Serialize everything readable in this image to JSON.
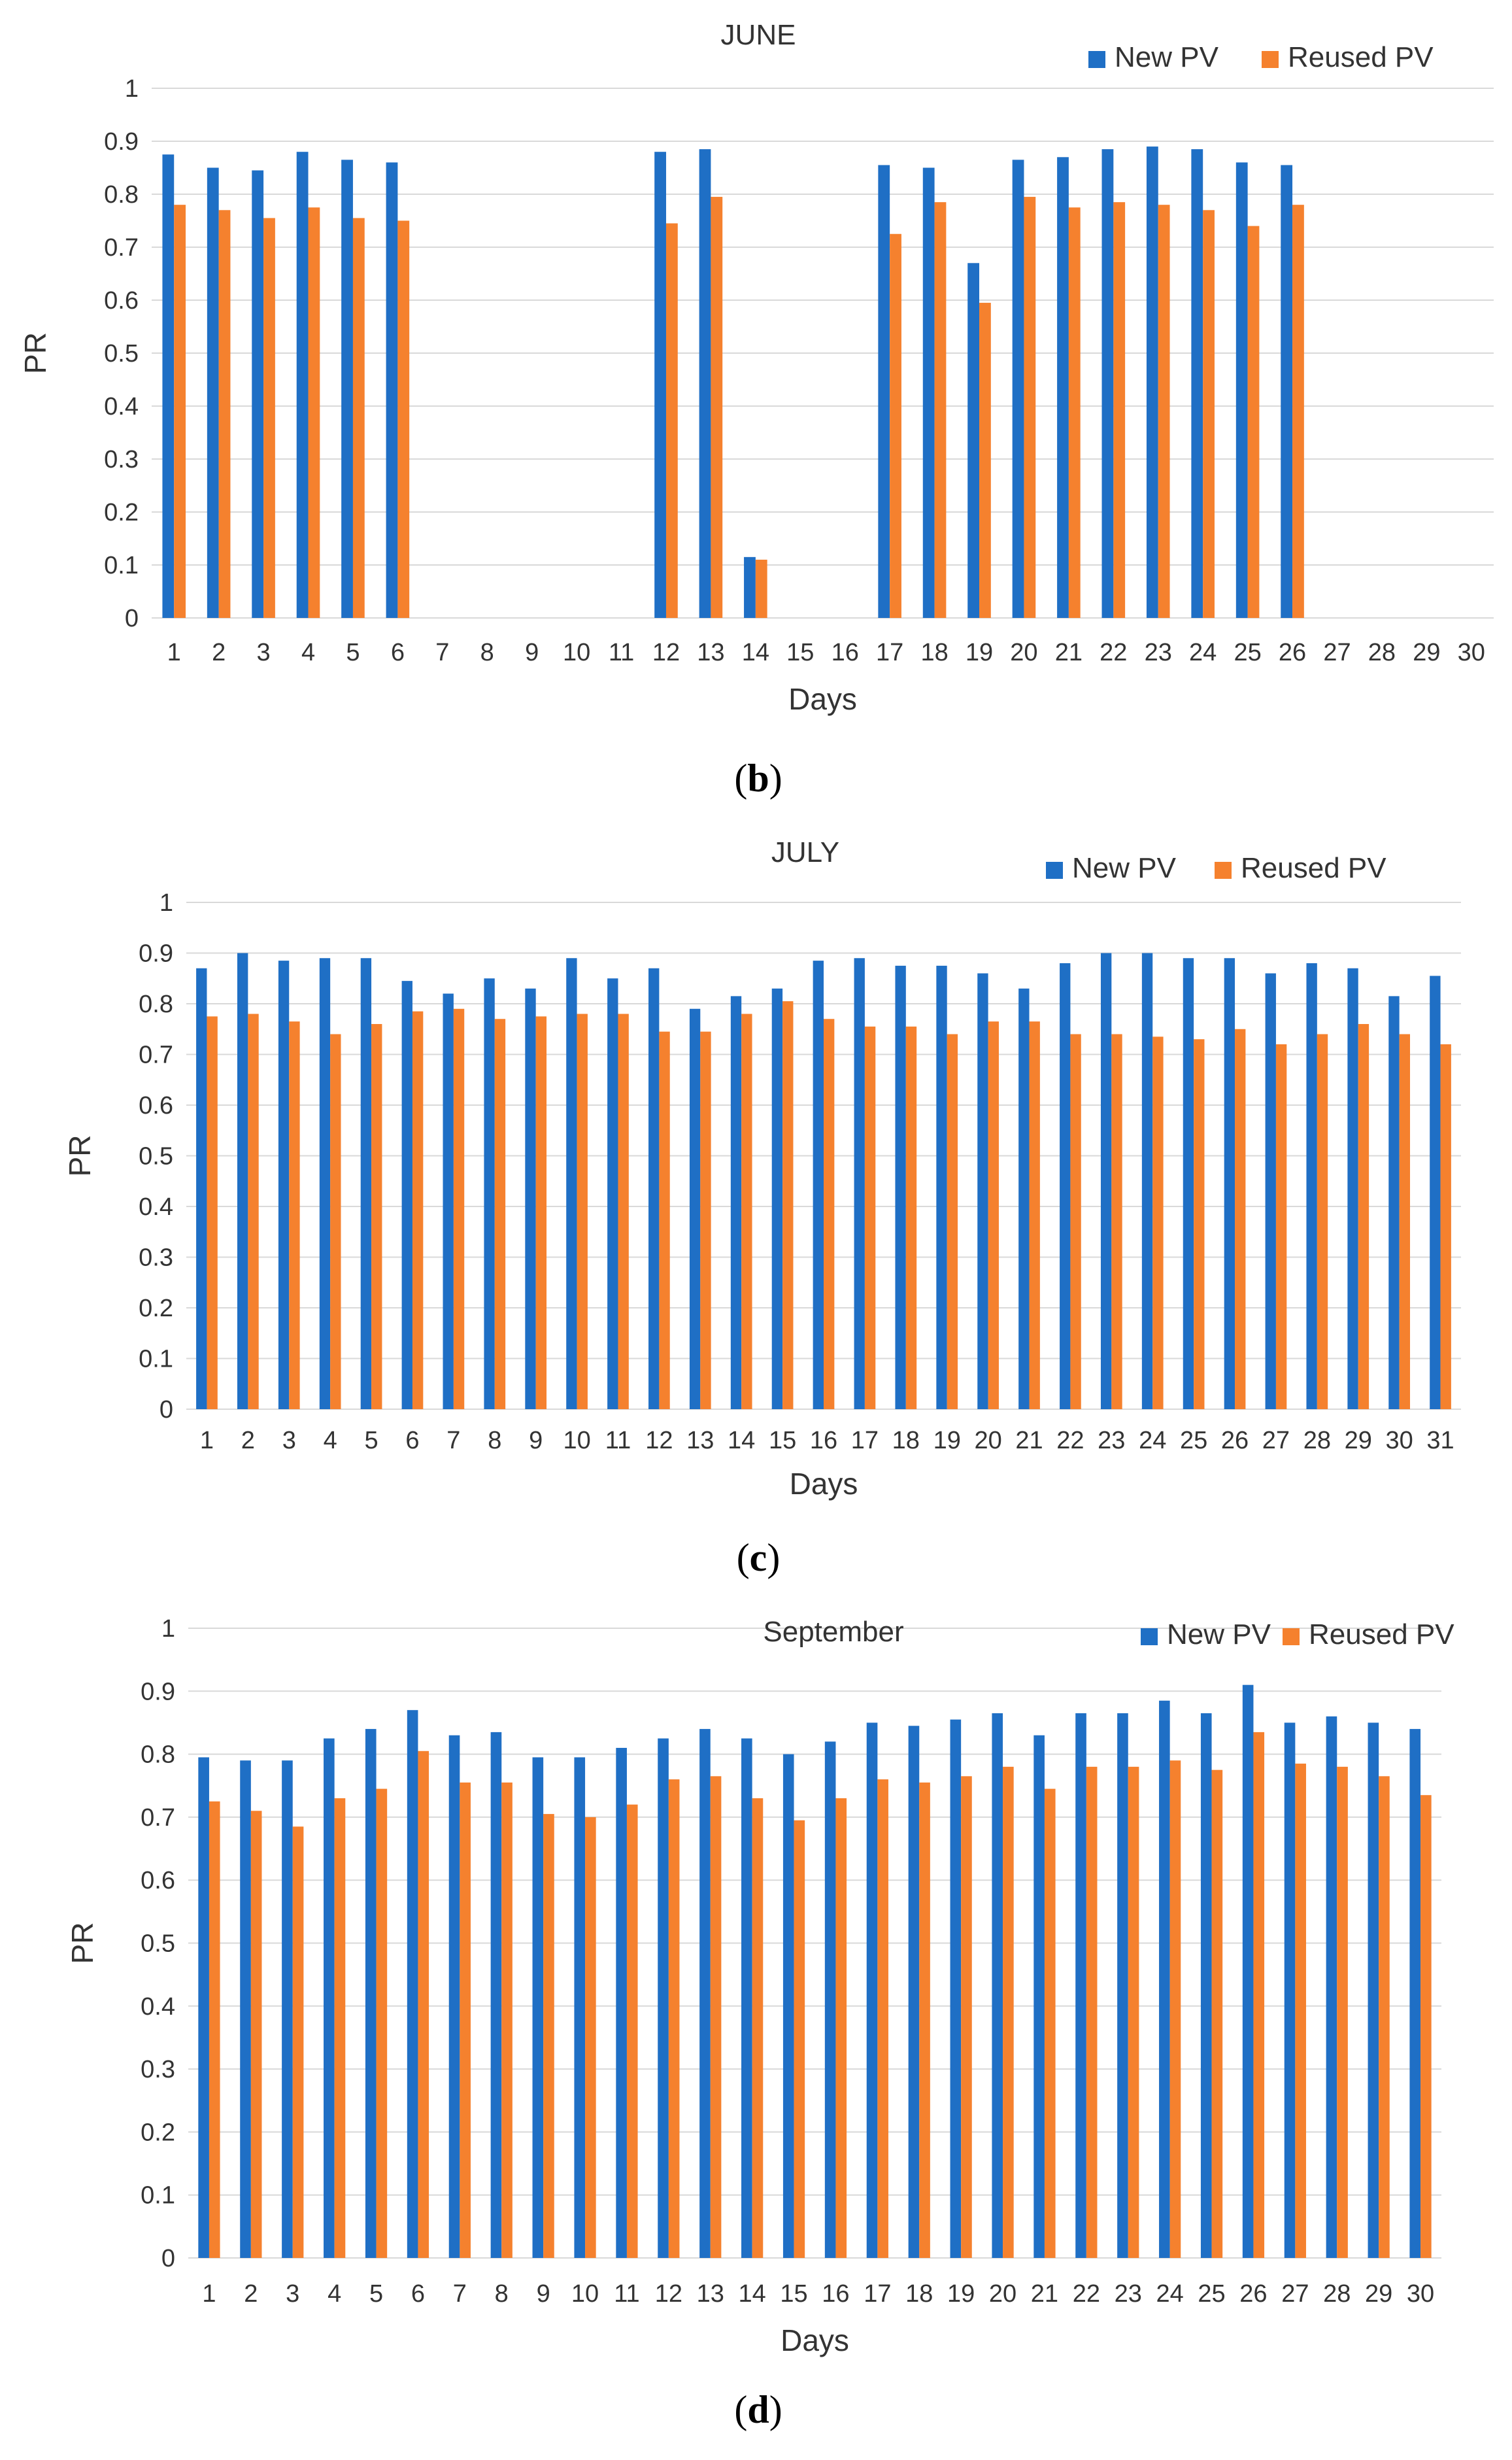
{
  "colors": {
    "new_pv": "#1f6fc5",
    "reused_pv": "#f5812e",
    "grid": "#d9d9d9",
    "text": "#333333"
  },
  "chart_data": [
    {
      "type": "bar",
      "title": "JUNE",
      "caption": "b",
      "xlabel": "Days",
      "ylabel": "PR",
      "ylim": [
        0,
        1
      ],
      "yticks": [
        "0",
        "0.1",
        "0.2",
        "0.3",
        "0.4",
        "0.5",
        "0.6",
        "0.7",
        "0.8",
        "0.9",
        "1"
      ],
      "grid": true,
      "legend_position": "top-right",
      "categories": [
        "1",
        "2",
        "3",
        "4",
        "5",
        "6",
        "7",
        "8",
        "9",
        "10",
        "11",
        "12",
        "13",
        "14",
        "15",
        "16",
        "17",
        "18",
        "19",
        "20",
        "21",
        "22",
        "23",
        "24",
        "25",
        "26",
        "27",
        "28",
        "29",
        "30"
      ],
      "series": [
        {
          "name": "New PV",
          "values": [
            0.875,
            0.85,
            0.845,
            0.88,
            0.865,
            0.86,
            0,
            0,
            0,
            0,
            0,
            0.88,
            0.885,
            0.115,
            0,
            0,
            0.855,
            0.85,
            0.67,
            0.865,
            0.87,
            0.885,
            0.89,
            0.885,
            0.86,
            0.855,
            0,
            0,
            0,
            0
          ]
        },
        {
          "name": "Reused PV",
          "values": [
            0.78,
            0.77,
            0.755,
            0.775,
            0.755,
            0.75,
            0,
            0,
            0,
            0,
            0,
            0.745,
            0.795,
            0.11,
            0,
            0,
            0.725,
            0.785,
            0.595,
            0.795,
            0.775,
            0.785,
            0.78,
            0.77,
            0.74,
            0.78,
            0,
            0,
            0,
            0
          ]
        }
      ]
    },
    {
      "type": "bar",
      "title": "JULY",
      "caption": "c",
      "xlabel": "Days",
      "ylabel": "PR",
      "ylim": [
        0,
        1
      ],
      "yticks": [
        "0",
        "0.1",
        "0.2",
        "0.3",
        "0.4",
        "0.5",
        "0.6",
        "0.7",
        "0.8",
        "0.9",
        "1"
      ],
      "grid": true,
      "legend_position": "top-right",
      "categories": [
        "1",
        "2",
        "3",
        "4",
        "5",
        "6",
        "7",
        "8",
        "9",
        "10",
        "11",
        "12",
        "13",
        "14",
        "15",
        "16",
        "17",
        "18",
        "19",
        "20",
        "21",
        "22",
        "23",
        "24",
        "25",
        "26",
        "27",
        "28",
        "29",
        "30",
        "31"
      ],
      "series": [
        {
          "name": "New PV",
          "values": [
            0.87,
            0.9,
            0.885,
            0.89,
            0.89,
            0.845,
            0.82,
            0.85,
            0.83,
            0.89,
            0.85,
            0.87,
            0.79,
            0.815,
            0.83,
            0.885,
            0.89,
            0.875,
            0.875,
            0.86,
            0.83,
            0.88,
            0.9,
            0.9,
            0.89,
            0.89,
            0.86,
            0.88,
            0.87,
            0.815,
            0.855
          ]
        },
        {
          "name": "Reused PV",
          "values": [
            0.775,
            0.78,
            0.765,
            0.74,
            0.76,
            0.785,
            0.79,
            0.77,
            0.775,
            0.78,
            0.78,
            0.745,
            0.745,
            0.78,
            0.805,
            0.77,
            0.755,
            0.755,
            0.74,
            0.765,
            0.765,
            0.74,
            0.74,
            0.735,
            0.73,
            0.75,
            0.72,
            0.74,
            0.76,
            0.74,
            0.72
          ]
        }
      ]
    },
    {
      "type": "bar",
      "title": "September",
      "caption": "d",
      "xlabel": "Days",
      "ylabel": "PR",
      "ylim": [
        0,
        1
      ],
      "yticks": [
        "0",
        "0.1",
        "0.2",
        "0.3",
        "0.4",
        "0.5",
        "0.6",
        "0.7",
        "0.8",
        "0.9",
        "1"
      ],
      "grid": true,
      "legend_position": "top-right",
      "categories": [
        "1",
        "2",
        "3",
        "4",
        "5",
        "6",
        "7",
        "8",
        "9",
        "10",
        "11",
        "12",
        "13",
        "14",
        "15",
        "16",
        "17",
        "18",
        "19",
        "20",
        "21",
        "22",
        "23",
        "24",
        "25",
        "26",
        "27",
        "28",
        "29",
        "30"
      ],
      "series": [
        {
          "name": "New PV",
          "values": [
            0.795,
            0.79,
            0.79,
            0.825,
            0.84,
            0.87,
            0.83,
            0.835,
            0.795,
            0.795,
            0.81,
            0.825,
            0.84,
            0.825,
            0.8,
            0.82,
            0.85,
            0.845,
            0.855,
            0.865,
            0.83,
            0.865,
            0.865,
            0.885,
            0.865,
            0.91,
            0.85,
            0.86,
            0.85,
            0.84
          ]
        },
        {
          "name": "Reused PV",
          "values": [
            0.725,
            0.71,
            0.685,
            0.73,
            0.745,
            0.805,
            0.755,
            0.755,
            0.705,
            0.7,
            0.72,
            0.76,
            0.765,
            0.73,
            0.695,
            0.73,
            0.76,
            0.755,
            0.765,
            0.78,
            0.745,
            0.78,
            0.78,
            0.79,
            0.775,
            0.835,
            0.785,
            0.78,
            0.765,
            0.735
          ]
        }
      ]
    }
  ]
}
